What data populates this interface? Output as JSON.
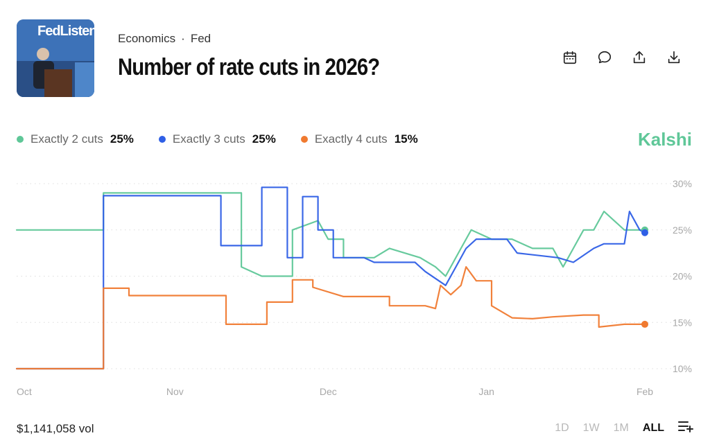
{
  "header": {
    "thumbnail_text": "FedListen",
    "category": "Economics",
    "subcategory": "Fed",
    "title": "Number of rate cuts in 2026?",
    "actions": [
      "calendar-icon",
      "comment-icon",
      "share-icon",
      "download-icon"
    ]
  },
  "brand": "Kalshi",
  "legend": [
    {
      "name": "Exactly 2 cuts",
      "pct": "25%",
      "color": "#5fc798"
    },
    {
      "name": "Exactly 3 cuts",
      "pct": "25%",
      "color": "#2f5fe6"
    },
    {
      "name": "Exactly 4 cuts",
      "pct": "15%",
      "color": "#f07a30"
    }
  ],
  "footer": {
    "volume": "$1,141,058 vol",
    "ranges": [
      "1D",
      "1W",
      "1M",
      "ALL"
    ],
    "active_range": "ALL"
  },
  "chart_data": {
    "type": "line",
    "x_ticks": [
      "Oct",
      "Nov",
      "Dec",
      "Jan",
      "Feb"
    ],
    "y_ticks": [
      "30%",
      "25%",
      "20%",
      "15%",
      "10%"
    ],
    "ylim": [
      10,
      30
    ],
    "xlim": [
      "2025-10-01",
      "2026-02-01"
    ],
    "grid": "horizontal dotted",
    "series": [
      {
        "name": "Exactly 2 cuts",
        "color": "#5fc798",
        "last": 25,
        "points": [
          [
            "2025-10-01",
            25
          ],
          [
            "2025-10-18",
            25
          ],
          [
            "2025-10-18",
            29
          ],
          [
            "2025-11-14",
            29
          ],
          [
            "2025-11-14",
            21
          ],
          [
            "2025-11-18",
            20
          ],
          [
            "2025-11-24",
            20
          ],
          [
            "2025-11-24",
            25
          ],
          [
            "2025-11-29",
            26
          ],
          [
            "2025-12-01",
            24
          ],
          [
            "2025-12-04",
            24
          ],
          [
            "2025-12-04",
            22
          ],
          [
            "2025-12-10",
            22
          ],
          [
            "2025-12-13",
            23
          ],
          [
            "2025-12-19",
            22
          ],
          [
            "2025-12-22",
            21
          ],
          [
            "2025-12-24",
            20
          ],
          [
            "2025-12-27",
            23
          ],
          [
            "2025-12-29",
            25
          ],
          [
            "2026-01-02",
            24
          ],
          [
            "2026-01-06",
            24
          ],
          [
            "2026-01-10",
            23
          ],
          [
            "2026-01-14",
            23
          ],
          [
            "2026-01-16",
            21
          ],
          [
            "2026-01-18",
            23
          ],
          [
            "2026-01-20",
            25
          ],
          [
            "2026-01-22",
            25
          ],
          [
            "2026-01-24",
            27
          ],
          [
            "2026-01-26",
            26
          ],
          [
            "2026-01-28",
            25
          ],
          [
            "2026-02-01",
            25
          ]
        ]
      },
      {
        "name": "Exactly 3 cuts",
        "color": "#2f5fe6",
        "last": 24.7,
        "points": [
          [
            "2025-10-01",
            10
          ],
          [
            "2025-10-18",
            10
          ],
          [
            "2025-10-18",
            28.7
          ],
          [
            "2025-11-10",
            28.7
          ],
          [
            "2025-11-10",
            23.3
          ],
          [
            "2025-11-18",
            23.3
          ],
          [
            "2025-11-18",
            29.6
          ],
          [
            "2025-11-23",
            29.6
          ],
          [
            "2025-11-23",
            22
          ],
          [
            "2025-11-26",
            22
          ],
          [
            "2025-11-26",
            28.6
          ],
          [
            "2025-11-29",
            28.6
          ],
          [
            "2025-11-29",
            25
          ],
          [
            "2025-12-02",
            25
          ],
          [
            "2025-12-02",
            22
          ],
          [
            "2025-12-08",
            22
          ],
          [
            "2025-12-10",
            21.5
          ],
          [
            "2025-12-18",
            21.5
          ],
          [
            "2025-12-20",
            20.5
          ],
          [
            "2025-12-24",
            19
          ],
          [
            "2025-12-26",
            21
          ],
          [
            "2025-12-28",
            23
          ],
          [
            "2025-12-30",
            24
          ],
          [
            "2026-01-05",
            24
          ],
          [
            "2026-01-07",
            22.5
          ],
          [
            "2026-01-15",
            22
          ],
          [
            "2026-01-18",
            21.5
          ],
          [
            "2026-01-22",
            23
          ],
          [
            "2026-01-24",
            23.5
          ],
          [
            "2026-01-28",
            23.5
          ],
          [
            "2026-01-29",
            27
          ],
          [
            "2026-01-31",
            25
          ],
          [
            "2026-02-01",
            24.7
          ]
        ]
      },
      {
        "name": "Exactly 4 cuts",
        "color": "#f07a30",
        "last": 14.8,
        "points": [
          [
            "2025-10-01",
            10
          ],
          [
            "2025-10-18",
            10
          ],
          [
            "2025-10-18",
            18.7
          ],
          [
            "2025-10-23",
            18.7
          ],
          [
            "2025-10-23",
            17.9
          ],
          [
            "2025-11-11",
            17.9
          ],
          [
            "2025-11-11",
            14.8
          ],
          [
            "2025-11-19",
            14.8
          ],
          [
            "2025-11-19",
            17.2
          ],
          [
            "2025-11-24",
            17.2
          ],
          [
            "2025-11-24",
            19.6
          ],
          [
            "2025-11-28",
            19.6
          ],
          [
            "2025-11-28",
            18.8
          ],
          [
            "2025-12-04",
            17.8
          ],
          [
            "2025-12-13",
            17.8
          ],
          [
            "2025-12-13",
            16.8
          ],
          [
            "2025-12-20",
            16.8
          ],
          [
            "2025-12-22",
            16.5
          ],
          [
            "2025-12-23",
            19
          ],
          [
            "2025-12-25",
            18
          ],
          [
            "2025-12-27",
            19
          ],
          [
            "2025-12-28",
            21
          ],
          [
            "2025-12-30",
            19.5
          ],
          [
            "2026-01-02",
            19.5
          ],
          [
            "2026-01-02",
            16.8
          ],
          [
            "2026-01-06",
            15.5
          ],
          [
            "2026-01-10",
            15.4
          ],
          [
            "2026-01-14",
            15.6
          ],
          [
            "2026-01-20",
            15.8
          ],
          [
            "2026-01-23",
            15.8
          ],
          [
            "2026-01-23",
            14.5
          ],
          [
            "2026-01-28",
            14.8
          ],
          [
            "2026-02-01",
            14.8
          ]
        ]
      }
    ]
  }
}
